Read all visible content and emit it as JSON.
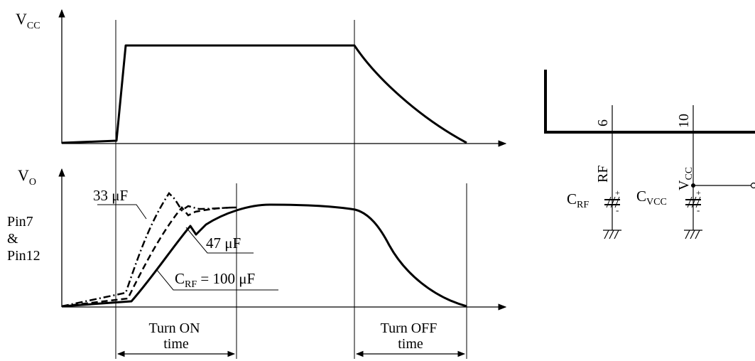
{
  "top_plot": {
    "ylabel": "V",
    "ylabel_sub": "CC"
  },
  "bottom_plot": {
    "ylabel": "V",
    "ylabel_sub": "O",
    "pin_label": [
      "Pin7",
      "&",
      "Pin12"
    ],
    "curve_labels": {
      "c33": "33 μF",
      "c47": "47 μF",
      "c100_prefix": "C",
      "c100_sub": "RF",
      "c100_suffix": " = 100 μF"
    }
  },
  "intervals": {
    "turn_on": [
      "Turn ON",
      "time"
    ],
    "turn_off": [
      "Turn OFF",
      "time"
    ]
  },
  "circuit": {
    "pin6_number": "6",
    "pin6_name": "RF",
    "pin10_number": "10",
    "pin10_name": "V",
    "pin10_name_sub": "CC",
    "cap1_label": "C",
    "cap1_sub": "RF",
    "cap2_label": "C",
    "cap2_sub": "VCC",
    "polarity_plus": "+",
    "polarity_minus": "-"
  }
}
